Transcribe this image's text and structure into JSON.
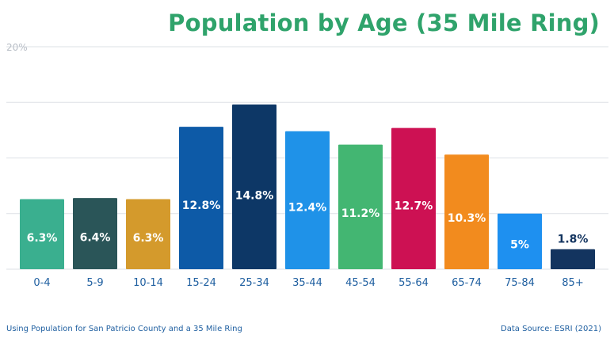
{
  "chart_data": {
    "type": "bar",
    "title": "Population by Age (35 Mile Ring)",
    "categories": [
      "0-4",
      "5-9",
      "10-14",
      "15-24",
      "25-34",
      "35-44",
      "45-54",
      "55-64",
      "65-74",
      "75-84",
      "85+"
    ],
    "values": [
      6.3,
      6.4,
      6.3,
      12.8,
      14.8,
      12.4,
      11.2,
      12.7,
      10.3,
      5,
      1.8
    ],
    "data_labels": [
      "6.3%",
      "6.4%",
      "6.3%",
      "12.8%",
      "14.8%",
      "12.4%",
      "11.2%",
      "12.7%",
      "10.3%",
      "5%",
      "1.8%"
    ],
    "colors": [
      "#3aaf8f",
      "#2a5558",
      "#d49a2c",
      "#0d5aa7",
      "#0d3766",
      "#1f92e8",
      "#43b672",
      "#cd1153",
      "#f28b1e",
      "#1e90f0",
      "#13345f"
    ],
    "ylim": [
      0,
      20
    ],
    "y_tick_labels": [
      "20%"
    ],
    "grid": true,
    "xlabel": "",
    "ylabel": ""
  },
  "footer": {
    "left": "Using Population for San Patricio County and a 35 Mile Ring",
    "right": "Data Source: ESRI (2021)"
  },
  "colors": {
    "title": "#2fa36b",
    "tick_text": "#1f5fa0",
    "grid": "#dde1e6",
    "label_on_bar": "#ffffff",
    "label_above_bar": "#13345f"
  }
}
